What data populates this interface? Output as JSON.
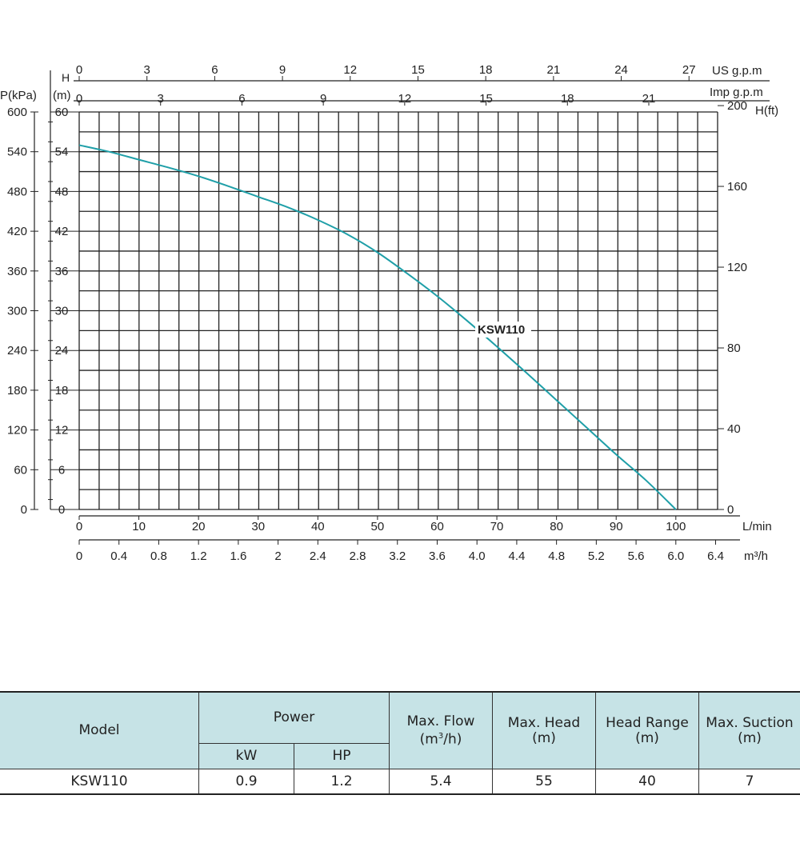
{
  "chart_data": {
    "type": "line",
    "title": "",
    "series": [
      {
        "name": "KSW110",
        "x_lmin": [
          0,
          5,
          10,
          15,
          20,
          25,
          30,
          35,
          40,
          45,
          50,
          55,
          60,
          65,
          70,
          75,
          80,
          85,
          90,
          95,
          100
        ],
        "y_m": [
          55,
          54,
          52.8,
          51.6,
          50.3,
          48.8,
          47.2,
          45.6,
          43.7,
          41.5,
          38.8,
          35.6,
          32.2,
          28.5,
          24.6,
          20.6,
          16.5,
          12.4,
          8.3,
          4.4,
          0
        ]
      }
    ],
    "curve_label": "KSW110",
    "axes": {
      "bottom_lmin": {
        "label": "L/min",
        "ticks": [
          "0",
          "10",
          "20",
          "30",
          "40",
          "50",
          "60",
          "70",
          "80",
          "90",
          "100"
        ],
        "range": [
          0,
          107
        ]
      },
      "bottom_m3h": {
        "label": "m³/h",
        "ticks": [
          "0",
          "0.4",
          "0.8",
          "1.2",
          "1.6",
          "2",
          "2.4",
          "2.8",
          "3.2",
          "3.6",
          "4.0",
          "4.4",
          "4.8",
          "5.2",
          "5.6",
          "6.0",
          "6.4"
        ]
      },
      "top_us": {
        "label": "US g.p.m",
        "ticks": [
          "0",
          "3",
          "6",
          "9",
          "12",
          "15",
          "18",
          "21",
          "24",
          "27"
        ]
      },
      "top_imp": {
        "label": "Imp g.p.m",
        "ticks": [
          "0",
          "3",
          "6",
          "9",
          "12",
          "15",
          "18",
          "21"
        ]
      },
      "left_h": {
        "label_top": "H",
        "label": "(m)",
        "ticks": [
          "0",
          "6",
          "12",
          "18",
          "24",
          "30",
          "36",
          "42",
          "48",
          "54",
          "60"
        ],
        "range": [
          0,
          60
        ]
      },
      "left_p": {
        "label": "P(kPa)",
        "ticks": [
          "0",
          "60",
          "120",
          "180",
          "240",
          "300",
          "360",
          "420",
          "480",
          "540",
          "600"
        ]
      },
      "right_ft": {
        "label": "H(ft)",
        "ticks": [
          "0",
          "40",
          "80",
          "120",
          "160",
          "200"
        ]
      }
    },
    "grid": true,
    "curve_color": "#1f9fa8"
  },
  "table": {
    "headers": {
      "model": "Model",
      "power": "Power",
      "kw": "kW",
      "hp": "HP",
      "max_flow": "Max. Flow",
      "max_flow_unit_pre": "(m",
      "max_flow_unit_sup": "3",
      "max_flow_unit_post": "/h)",
      "max_head": "Max. Head",
      "max_head_unit": "(m)",
      "head_range": "Head Range",
      "head_range_unit": "(m)",
      "max_suction": "Max. Suction",
      "max_suction_unit": "(m)"
    },
    "rows": [
      {
        "model": "KSW110",
        "kw": "0.9",
        "hp": "1.2",
        "max_flow": "5.4",
        "max_head": "55",
        "head_range": "40",
        "max_suction": "7"
      }
    ],
    "header_color": "#c6e3e6"
  }
}
